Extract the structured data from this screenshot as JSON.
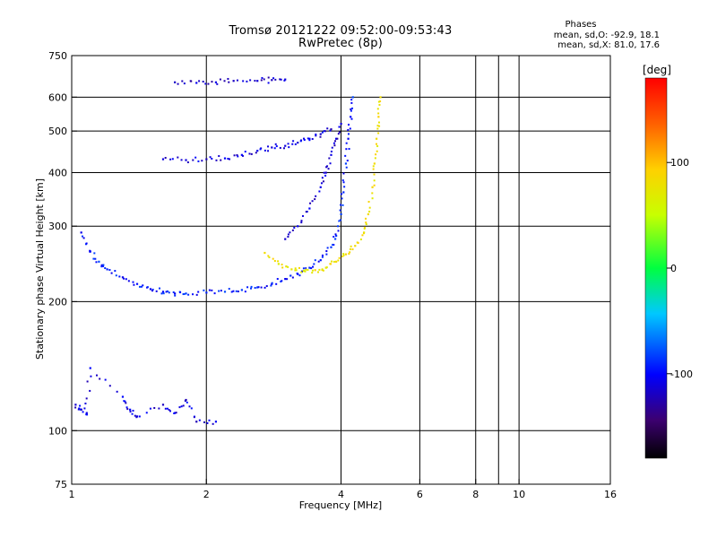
{
  "title_line1": "Tromsø 20121222 09:52:00-09:53:43",
  "title_line2": "RwPretec (8p)",
  "stats": {
    "title": "Phases",
    "o_line": "mean, sd,O: -92.9, 18.1",
    "x_line": "mean, sd,X:  81.0, 17.6"
  },
  "colorbar": {
    "unit_label": "[deg]",
    "ticks": [
      {
        "value": 100,
        "label": "100"
      },
      {
        "value": 0,
        "label": "0"
      },
      {
        "value": -100,
        "label": "-100"
      }
    ],
    "range": [
      -180,
      180
    ]
  },
  "chart_data": {
    "type": "scatter",
    "title": "Tromsø 20121222 09:52:00-09:53:43",
    "subtitle": "RwPretec (8p)",
    "xlabel": "Frequency [MHz]",
    "ylabel": "Stationary phase Virtual Height [km]",
    "x_scale": "log",
    "y_scale": "log",
    "xlim": [
      1,
      16
    ],
    "ylim": [
      75,
      750
    ],
    "x_ticks": [
      {
        "value": 1,
        "label": "1"
      },
      {
        "value": 2,
        "label": "2"
      },
      {
        "value": 4,
        "label": "4"
      },
      {
        "value": 6,
        "label": "6"
      },
      {
        "value": 8,
        "label": "8"
      },
      {
        "value": 10,
        "label": "10"
      },
      {
        "value": 16,
        "label": "16"
      }
    ],
    "x_grid": [
      2,
      4,
      6,
      8,
      9,
      10
    ],
    "y_ticks": [
      {
        "value": 75,
        "label": "75"
      },
      {
        "value": 100,
        "label": "100"
      },
      {
        "value": 200,
        "label": "200"
      },
      {
        "value": 300,
        "label": "300"
      },
      {
        "value": 400,
        "label": "400"
      },
      {
        "value": 500,
        "label": "500"
      },
      {
        "value": 600,
        "label": "600"
      },
      {
        "value": 750,
        "label": "750"
      }
    ],
    "y_grid": [
      100,
      200,
      300,
      400,
      500,
      600
    ],
    "grid": true,
    "color_variable": "phase [deg]",
    "traces": [
      {
        "note": "O-mode F trace",
        "phase": -95,
        "points": [
          [
            1.05,
            290
          ],
          [
            1.1,
            262
          ],
          [
            1.15,
            248
          ],
          [
            1.2,
            238
          ],
          [
            1.3,
            228
          ],
          [
            1.4,
            220
          ],
          [
            1.5,
            214
          ],
          [
            1.6,
            211
          ],
          [
            1.7,
            209
          ],
          [
            1.8,
            209
          ],
          [
            2.0,
            210
          ],
          [
            2.2,
            211
          ],
          [
            2.4,
            213
          ],
          [
            2.6,
            216
          ],
          [
            2.8,
            220
          ],
          [
            3.0,
            226
          ],
          [
            3.2,
            232
          ],
          [
            3.4,
            240
          ],
          [
            3.6,
            250
          ],
          [
            3.8,
            268
          ],
          [
            3.9,
            285
          ],
          [
            4.0,
            320
          ],
          [
            4.05,
            360
          ],
          [
            4.1,
            420
          ],
          [
            4.15,
            480
          ],
          [
            4.2,
            540
          ],
          [
            4.25,
            600
          ]
        ]
      },
      {
        "note": "X-mode F trace",
        "phase": 80,
        "points": [
          [
            2.7,
            260
          ],
          [
            2.9,
            245
          ],
          [
            3.1,
            238
          ],
          [
            3.3,
            236
          ],
          [
            3.5,
            237
          ],
          [
            3.7,
            240
          ],
          [
            3.9,
            248
          ],
          [
            4.1,
            258
          ],
          [
            4.3,
            270
          ],
          [
            4.5,
            290
          ],
          [
            4.6,
            320
          ],
          [
            4.7,
            370
          ],
          [
            4.75,
            420
          ],
          [
            4.8,
            480
          ],
          [
            4.85,
            540
          ],
          [
            4.9,
            600
          ]
        ]
      },
      {
        "note": "upper O echo",
        "phase": -110,
        "points": [
          [
            1.6,
            430
          ],
          [
            1.8,
            428
          ],
          [
            2.0,
            430
          ],
          [
            2.2,
            432
          ],
          [
            2.4,
            440
          ],
          [
            2.6,
            450
          ],
          [
            2.8,
            458
          ],
          [
            3.0,
            462
          ],
          [
            3.2,
            470
          ],
          [
            3.4,
            480
          ],
          [
            3.6,
            492
          ],
          [
            3.8,
            505
          ]
        ]
      },
      {
        "note": "upper oblique band",
        "phase": -115,
        "points": [
          [
            3.0,
            280
          ],
          [
            3.2,
            300
          ],
          [
            3.4,
            330
          ],
          [
            3.6,
            370
          ],
          [
            3.7,
            400
          ],
          [
            3.8,
            440
          ],
          [
            3.9,
            480
          ],
          [
            4.0,
            520
          ]
        ]
      },
      {
        "note": "top faint band",
        "phase": -120,
        "points": [
          [
            1.7,
            650
          ],
          [
            1.9,
            648
          ],
          [
            2.1,
            650
          ],
          [
            2.3,
            655
          ],
          [
            2.6,
            655
          ],
          [
            2.8,
            658
          ],
          [
            3.0,
            660
          ]
        ]
      },
      {
        "note": "E region echoes",
        "phase": -110,
        "points": [
          [
            1.02,
            115
          ],
          [
            1.05,
            112
          ],
          [
            1.08,
            110
          ],
          [
            1.1,
            140
          ],
          [
            1.3,
            120
          ],
          [
            1.35,
            112
          ],
          [
            1.4,
            108
          ],
          [
            1.6,
            115
          ],
          [
            1.7,
            110
          ],
          [
            1.8,
            118
          ],
          [
            1.9,
            105
          ],
          [
            2.1,
            105
          ]
        ]
      }
    ]
  }
}
